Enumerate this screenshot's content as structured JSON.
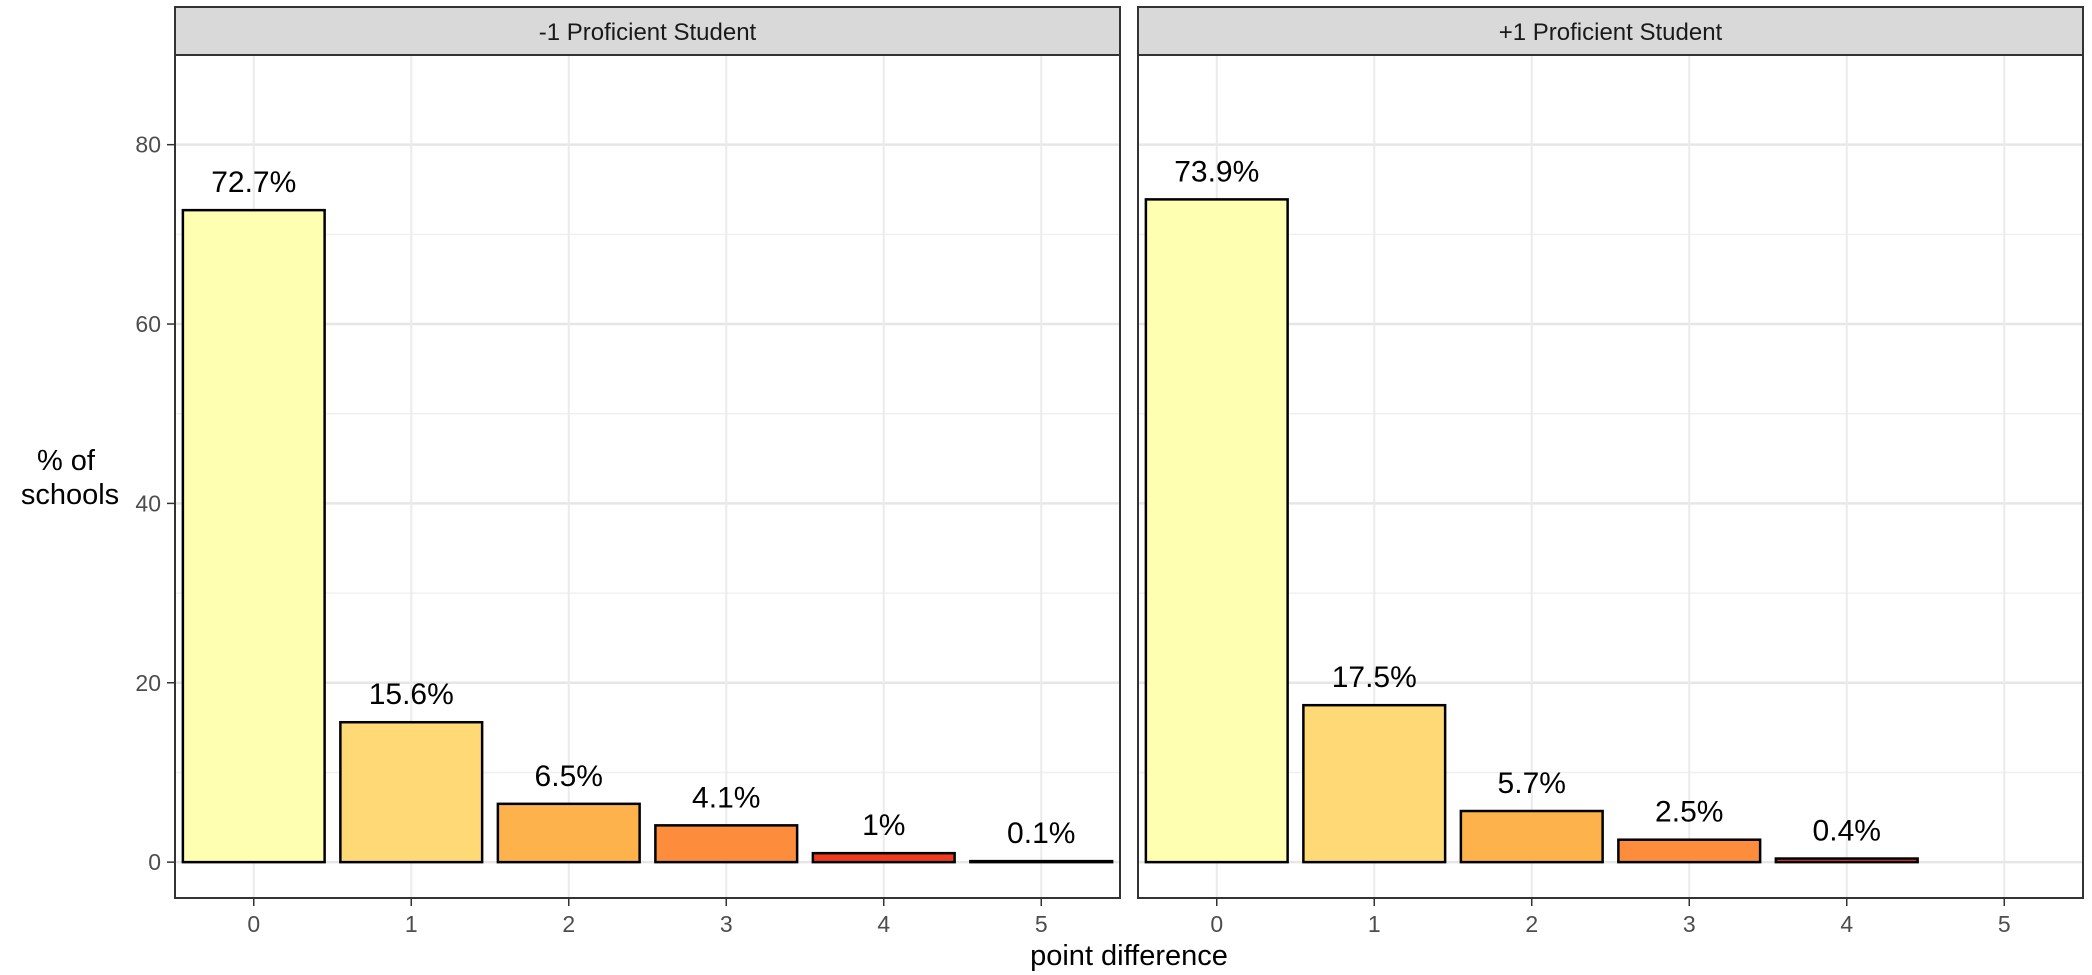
{
  "chart_data": {
    "type": "bar",
    "xlabel": "point difference",
    "ylabel": [
      "% of",
      "schools"
    ],
    "ylim": [
      -4,
      90
    ],
    "yticks": [
      0,
      20,
      40,
      60,
      80
    ],
    "categories": [
      "0",
      "1",
      "2",
      "3",
      "4",
      "5"
    ],
    "fill_colors": [
      "#FFFFB2",
      "#FED976",
      "#FEB24C",
      "#FD8D3C",
      "#F03B20",
      "#BD0026"
    ],
    "grid": true,
    "panels": [
      {
        "name": "-1 Proficient Student",
        "values": [
          72.7,
          15.6,
          6.5,
          4.1,
          1.0,
          0.1
        ],
        "labels": [
          "72.7%",
          "15.6%",
          "6.5%",
          "4.1%",
          "1%",
          "0.1%"
        ]
      },
      {
        "name": "+1 Proficient Student",
        "values": [
          73.9,
          17.5,
          5.7,
          2.5,
          0.4,
          null
        ],
        "labels": [
          "73.9%",
          "17.5%",
          "5.7%",
          "2.5%",
          "0.4%",
          null
        ]
      }
    ]
  }
}
